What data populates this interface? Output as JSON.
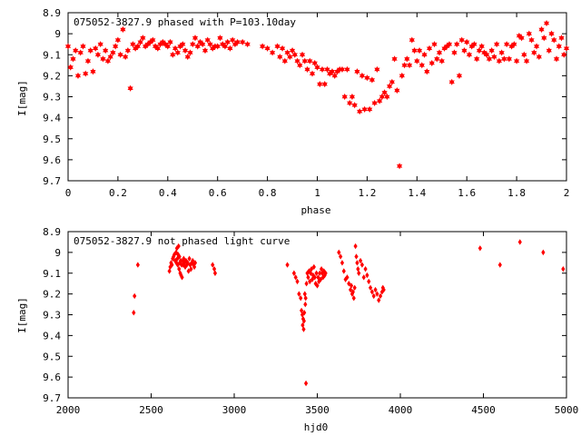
{
  "chart_data": [
    {
      "type": "scatter",
      "title": "075052-3827.9 phased with P=103.10day",
      "xlabel": "phase",
      "ylabel": "I[mag]",
      "xlim": [
        0,
        2
      ],
      "ylim": [
        8.9,
        9.7
      ],
      "y_inverted": true,
      "x_ticks": [
        "0",
        "0.2",
        "0.4",
        "0.6",
        "0.8",
        "1",
        "1.2",
        "1.4",
        "1.6",
        "1.8",
        "2"
      ],
      "y_ticks": [
        "8.9",
        "9",
        "9.1",
        "9.2",
        "9.3",
        "9.4",
        "9.5",
        "9.6",
        "9.7"
      ],
      "marker": "star",
      "color": "#ff0000",
      "points": [
        [
          0.0,
          9.06
        ],
        [
          0.01,
          9.16
        ],
        [
          0.02,
          9.12
        ],
        [
          0.03,
          9.08
        ],
        [
          0.04,
          9.2
        ],
        [
          0.05,
          9.09
        ],
        [
          0.06,
          9.06
        ],
        [
          0.07,
          9.19
        ],
        [
          0.08,
          9.13
        ],
        [
          0.09,
          9.08
        ],
        [
          0.1,
          9.18
        ],
        [
          0.11,
          9.07
        ],
        [
          0.12,
          9.1
        ],
        [
          0.13,
          9.05
        ],
        [
          0.14,
          9.12
        ],
        [
          0.15,
          9.08
        ],
        [
          0.16,
          9.13
        ],
        [
          0.17,
          9.11
        ],
        [
          0.18,
          9.09
        ],
        [
          0.19,
          9.06
        ],
        [
          0.2,
          9.03
        ],
        [
          0.21,
          9.1
        ],
        [
          0.22,
          8.98
        ],
        [
          0.23,
          9.11
        ],
        [
          0.24,
          9.08
        ],
        [
          0.25,
          9.26
        ],
        [
          0.26,
          9.05
        ],
        [
          0.27,
          9.07
        ],
        [
          0.28,
          9.06
        ],
        [
          0.29,
          9.04
        ],
        [
          0.3,
          9.02
        ],
        [
          0.31,
          9.06
        ],
        [
          0.32,
          9.05
        ],
        [
          0.33,
          9.04
        ],
        [
          0.34,
          9.03
        ],
        [
          0.35,
          9.06
        ],
        [
          0.36,
          9.07
        ],
        [
          0.37,
          9.05
        ],
        [
          0.38,
          9.04
        ],
        [
          0.39,
          9.05
        ],
        [
          0.4,
          9.06
        ],
        [
          0.41,
          9.04
        ],
        [
          0.42,
          9.1
        ],
        [
          0.43,
          9.07
        ],
        [
          0.44,
          9.09
        ],
        [
          0.45,
          9.06
        ],
        [
          0.46,
          9.05
        ],
        [
          0.47,
          9.08
        ],
        [
          0.48,
          9.11
        ],
        [
          0.49,
          9.09
        ],
        [
          0.5,
          9.05
        ],
        [
          0.51,
          9.02
        ],
        [
          0.52,
          9.06
        ],
        [
          0.53,
          9.04
        ],
        [
          0.54,
          9.05
        ],
        [
          0.55,
          9.08
        ],
        [
          0.56,
          9.03
        ],
        [
          0.57,
          9.05
        ],
        [
          0.58,
          9.07
        ],
        [
          0.59,
          9.06
        ],
        [
          0.6,
          9.06
        ],
        [
          0.61,
          9.02
        ],
        [
          0.62,
          9.05
        ],
        [
          0.63,
          9.06
        ],
        [
          0.64,
          9.04
        ],
        [
          0.65,
          9.07
        ],
        [
          0.66,
          9.03
        ],
        [
          0.67,
          9.05
        ],
        [
          0.68,
          9.04
        ],
        [
          0.7,
          9.04
        ],
        [
          0.72,
          9.05
        ],
        [
          0.78,
          9.06
        ],
        [
          0.8,
          9.07
        ],
        [
          0.82,
          9.09
        ],
        [
          0.84,
          9.06
        ],
        [
          0.85,
          9.11
        ],
        [
          0.86,
          9.07
        ],
        [
          0.87,
          9.13
        ],
        [
          0.88,
          9.09
        ],
        [
          0.89,
          9.11
        ],
        [
          0.9,
          9.08
        ],
        [
          0.91,
          9.1
        ],
        [
          0.92,
          9.13
        ],
        [
          0.93,
          9.15
        ],
        [
          0.94,
          9.1
        ],
        [
          0.95,
          9.13
        ],
        [
          0.96,
          9.17
        ],
        [
          0.97,
          9.13
        ],
        [
          0.98,
          9.19
        ],
        [
          0.99,
          9.14
        ],
        [
          1.0,
          9.16
        ],
        [
          1.01,
          9.24
        ],
        [
          1.02,
          9.17
        ],
        [
          1.03,
          9.24
        ],
        [
          1.04,
          9.17
        ],
        [
          1.05,
          9.19
        ],
        [
          1.06,
          9.18
        ],
        [
          1.07,
          9.2
        ],
        [
          1.08,
          9.18
        ],
        [
          1.09,
          9.17
        ],
        [
          1.1,
          9.17
        ],
        [
          1.11,
          9.3
        ],
        [
          1.12,
          9.17
        ],
        [
          1.13,
          9.33
        ],
        [
          1.14,
          9.3
        ],
        [
          1.15,
          9.34
        ],
        [
          1.16,
          9.18
        ],
        [
          1.17,
          9.37
        ],
        [
          1.18,
          9.2
        ],
        [
          1.19,
          9.36
        ],
        [
          1.2,
          9.21
        ],
        [
          1.21,
          9.36
        ],
        [
          1.22,
          9.22
        ],
        [
          1.23,
          9.33
        ],
        [
          1.24,
          9.17
        ],
        [
          1.25,
          9.32
        ],
        [
          1.26,
          9.3
        ],
        [
          1.27,
          9.28
        ],
        [
          1.28,
          9.3
        ],
        [
          1.29,
          9.25
        ],
        [
          1.3,
          9.23
        ],
        [
          1.31,
          9.12
        ],
        [
          1.32,
          9.27
        ],
        [
          1.33,
          9.63
        ],
        [
          1.34,
          9.2
        ],
        [
          1.35,
          9.15
        ],
        [
          1.36,
          9.12
        ],
        [
          1.37,
          9.15
        ],
        [
          1.38,
          9.03
        ],
        [
          1.39,
          9.08
        ],
        [
          1.4,
          9.13
        ],
        [
          1.41,
          9.08
        ],
        [
          1.42,
          9.15
        ],
        [
          1.43,
          9.1
        ],
        [
          1.44,
          9.18
        ],
        [
          1.45,
          9.07
        ],
        [
          1.46,
          9.14
        ],
        [
          1.47,
          9.05
        ],
        [
          1.48,
          9.12
        ],
        [
          1.49,
          9.09
        ],
        [
          1.5,
          9.13
        ],
        [
          1.51,
          9.07
        ],
        [
          1.52,
          9.06
        ],
        [
          1.53,
          9.05
        ],
        [
          1.54,
          9.23
        ],
        [
          1.55,
          9.09
        ],
        [
          1.56,
          9.05
        ],
        [
          1.57,
          9.2
        ],
        [
          1.58,
          9.03
        ],
        [
          1.59,
          9.08
        ],
        [
          1.6,
          9.04
        ],
        [
          1.61,
          9.1
        ],
        [
          1.62,
          9.06
        ],
        [
          1.63,
          9.05
        ],
        [
          1.64,
          9.12
        ],
        [
          1.65,
          9.08
        ],
        [
          1.66,
          9.06
        ],
        [
          1.67,
          9.09
        ],
        [
          1.68,
          9.1
        ],
        [
          1.69,
          9.12
        ],
        [
          1.7,
          9.08
        ],
        [
          1.71,
          9.11
        ],
        [
          1.72,
          9.05
        ],
        [
          1.73,
          9.13
        ],
        [
          1.74,
          9.09
        ],
        [
          1.75,
          9.12
        ],
        [
          1.76,
          9.05
        ],
        [
          1.77,
          9.12
        ],
        [
          1.78,
          9.06
        ],
        [
          1.79,
          9.05
        ],
        [
          1.8,
          9.13
        ],
        [
          1.81,
          9.01
        ],
        [
          1.82,
          9.02
        ],
        [
          1.83,
          9.1
        ],
        [
          1.84,
          9.13
        ],
        [
          1.85,
          9.0
        ],
        [
          1.86,
          9.03
        ],
        [
          1.87,
          9.09
        ],
        [
          1.88,
          9.06
        ],
        [
          1.89,
          9.11
        ],
        [
          1.9,
          8.98
        ],
        [
          1.91,
          9.02
        ],
        [
          1.92,
          8.95
        ],
        [
          1.93,
          9.08
        ],
        [
          1.94,
          9.0
        ],
        [
          1.95,
          9.03
        ],
        [
          1.96,
          9.12
        ],
        [
          1.97,
          9.06
        ],
        [
          1.98,
          9.02
        ],
        [
          1.99,
          9.1
        ],
        [
          2.0,
          9.07
        ]
      ]
    },
    {
      "type": "scatter",
      "title": "075052-3827.9 not phased light curve",
      "xlabel": "hjd0",
      "ylabel": "I[mag]",
      "xlim": [
        2000,
        5000
      ],
      "ylim": [
        8.9,
        9.7
      ],
      "y_inverted": true,
      "x_ticks": [
        "2000",
        "2500",
        "3000",
        "3500",
        "4000",
        "4500",
        "5000"
      ],
      "y_ticks": [
        "8.9",
        "9",
        "9.1",
        "9.2",
        "9.3",
        "9.4",
        "9.5",
        "9.6",
        "9.7"
      ],
      "marker": "diamond",
      "color": "#ff0000",
      "points": [
        [
          2395,
          9.29
        ],
        [
          2400,
          9.21
        ],
        [
          2420,
          9.06
        ],
        [
          2610,
          9.09
        ],
        [
          2615,
          9.07
        ],
        [
          2620,
          9.05
        ],
        [
          2625,
          9.06
        ],
        [
          2630,
          9.03
        ],
        [
          2635,
          9.02
        ],
        [
          2640,
          9.01
        ],
        [
          2645,
          9.04
        ],
        [
          2650,
          9.0
        ],
        [
          2652,
          9.05
        ],
        [
          2655,
          8.98
        ],
        [
          2658,
          9.03
        ],
        [
          2660,
          9.06
        ],
        [
          2662,
          9.01
        ],
        [
          2665,
          8.97
        ],
        [
          2668,
          9.08
        ],
        [
          2670,
          9.02
        ],
        [
          2672,
          9.05
        ],
        [
          2675,
          9.1
        ],
        [
          2678,
          9.04
        ],
        [
          2680,
          9.11
        ],
        [
          2683,
          9.06
        ],
        [
          2686,
          9.12
        ],
        [
          2690,
          9.04
        ],
        [
          2693,
          9.06
        ],
        [
          2696,
          9.03
        ],
        [
          2700,
          9.05
        ],
        [
          2705,
          9.07
        ],
        [
          2710,
          9.04
        ],
        [
          2715,
          9.06
        ],
        [
          2720,
          9.05
        ],
        [
          2725,
          9.09
        ],
        [
          2730,
          9.03
        ],
        [
          2735,
          9.06
        ],
        [
          2740,
          9.08
        ],
        [
          2745,
          9.05
        ],
        [
          2750,
          9.04
        ],
        [
          2755,
          9.06
        ],
        [
          2760,
          9.07
        ],
        [
          2765,
          9.05
        ],
        [
          2870,
          9.06
        ],
        [
          2880,
          9.08
        ],
        [
          2885,
          9.1
        ],
        [
          3320,
          9.06
        ],
        [
          3360,
          9.1
        ],
        [
          3370,
          9.12
        ],
        [
          3380,
          9.14
        ],
        [
          3390,
          9.2
        ],
        [
          3400,
          9.22
        ],
        [
          3405,
          9.28
        ],
        [
          3410,
          9.3
        ],
        [
          3412,
          9.35
        ],
        [
          3415,
          9.32
        ],
        [
          3418,
          9.37
        ],
        [
          3420,
          9.33
        ],
        [
          3422,
          9.29
        ],
        [
          3425,
          9.2
        ],
        [
          3428,
          9.25
        ],
        [
          3430,
          9.22
        ],
        [
          3432,
          9.63
        ],
        [
          3435,
          9.15
        ],
        [
          3440,
          9.1
        ],
        [
          3445,
          9.12
        ],
        [
          3450,
          9.09
        ],
        [
          3455,
          9.14
        ],
        [
          3460,
          9.1
        ],
        [
          3465,
          9.08
        ],
        [
          3470,
          9.13
        ],
        [
          3475,
          9.11
        ],
        [
          3480,
          9.07
        ],
        [
          3485,
          9.12
        ],
        [
          3490,
          9.15
        ],
        [
          3495,
          9.1
        ],
        [
          3500,
          9.16
        ],
        [
          3505,
          9.12
        ],
        [
          3510,
          9.14
        ],
        [
          3515,
          9.1
        ],
        [
          3520,
          9.13
        ],
        [
          3525,
          9.08
        ],
        [
          3530,
          9.1
        ],
        [
          3535,
          9.12
        ],
        [
          3540,
          9.09
        ],
        [
          3545,
          9.11
        ],
        [
          3550,
          9.1
        ],
        [
          3630,
          9.0
        ],
        [
          3640,
          9.02
        ],
        [
          3650,
          9.05
        ],
        [
          3660,
          9.09
        ],
        [
          3670,
          9.13
        ],
        [
          3680,
          9.12
        ],
        [
          3690,
          9.15
        ],
        [
          3700,
          9.18
        ],
        [
          3705,
          9.16
        ],
        [
          3710,
          9.2
        ],
        [
          3715,
          9.19
        ],
        [
          3720,
          9.22
        ],
        [
          3725,
          9.17
        ],
        [
          3730,
          8.97
        ],
        [
          3735,
          9.02
        ],
        [
          3740,
          9.05
        ],
        [
          3745,
          9.08
        ],
        [
          3750,
          9.1
        ],
        [
          3760,
          9.04
        ],
        [
          3770,
          9.06
        ],
        [
          3780,
          9.12
        ],
        [
          3790,
          9.08
        ],
        [
          3800,
          9.11
        ],
        [
          3810,
          9.14
        ],
        [
          3820,
          9.17
        ],
        [
          3830,
          9.19
        ],
        [
          3840,
          9.21
        ],
        [
          3850,
          9.18
        ],
        [
          3860,
          9.2
        ],
        [
          3870,
          9.23
        ],
        [
          3880,
          9.21
        ],
        [
          3890,
          9.19
        ],
        [
          3895,
          9.17
        ],
        [
          3900,
          9.18
        ],
        [
          4480,
          8.98
        ],
        [
          4600,
          9.06
        ],
        [
          4720,
          8.95
        ],
        [
          4860,
          9.0
        ],
        [
          4980,
          9.08
        ]
      ]
    }
  ]
}
